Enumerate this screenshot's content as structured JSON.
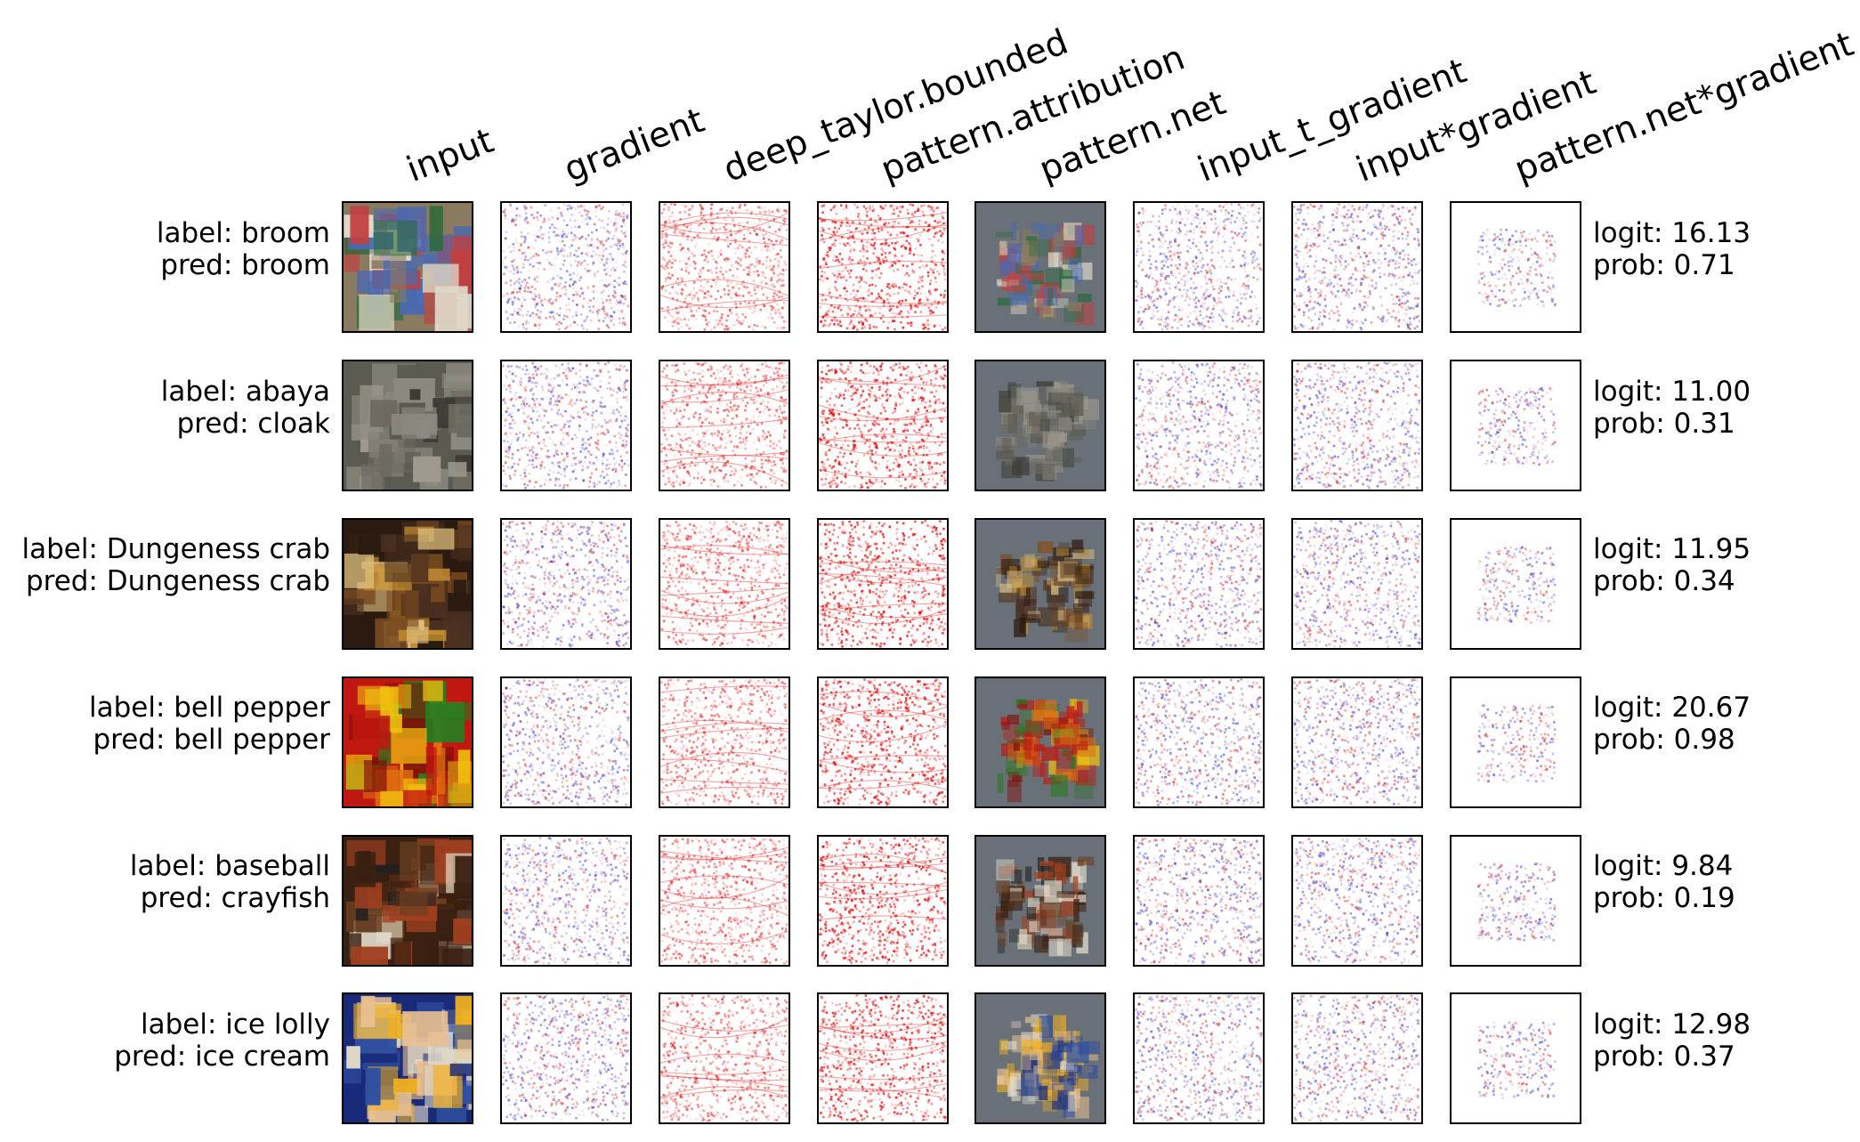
{
  "columns": [
    "input",
    "gradient",
    "deep_taylor.bounded",
    "pattern.attribution",
    "pattern.net",
    "input_t_gradient",
    "input*gradient",
    "pattern.net*gradient"
  ],
  "rows": [
    {
      "label": "label: broom",
      "pred": "pred: broom",
      "logit": "logit: 16.13",
      "prob": "prob: 0.71",
      "input_colors": [
        "#8a7a60",
        "#c04040",
        "#2a6a3a",
        "#4a6ab0",
        "#e0d8c8"
      ]
    },
    {
      "label": "label: abaya",
      "pred": "pred: cloak",
      "logit": "logit: 11.00",
      "prob": "prob: 0.31",
      "input_colors": [
        "#5a5a50",
        "#8a8a80",
        "#3a3a34",
        "#6e6a60",
        "#a09a8e"
      ]
    },
    {
      "label": "label: Dungeness crab",
      "pred": "pred: Dungeness crab",
      "logit": "logit: 11.95",
      "prob": "prob: 0.34",
      "input_colors": [
        "#2a1a10",
        "#c08a30",
        "#7a4a20",
        "#e0c080",
        "#4a3020"
      ]
    },
    {
      "label": "label: bell pepper",
      "pred": "pred: bell pepper",
      "logit": "logit: 20.67",
      "prob": "prob: 0.98",
      "input_colors": [
        "#c01810",
        "#f0c010",
        "#e07010",
        "#2a7a20",
        "#801008"
      ]
    },
    {
      "label": "label: baseball",
      "pred": "pred: crayfish",
      "logit": "logit: 9.84",
      "prob": "prob: 0.19",
      "input_colors": [
        "#3a2010",
        "#a04020",
        "#e8e0d0",
        "#6a4020",
        "#202020"
      ]
    },
    {
      "label": "label: ice lolly",
      "pred": "pred: ice cream",
      "logit": "logit: 12.98",
      "prob": "prob: 0.37",
      "input_colors": [
        "#1a2a7a",
        "#f0b020",
        "#e0d8c8",
        "#e8c090",
        "#3050a0"
      ]
    }
  ],
  "heatmap_styles": [
    "input",
    "bwr",
    "red",
    "red-strong",
    "pattern",
    "bwr",
    "bwr",
    "bwr-sparse"
  ]
}
